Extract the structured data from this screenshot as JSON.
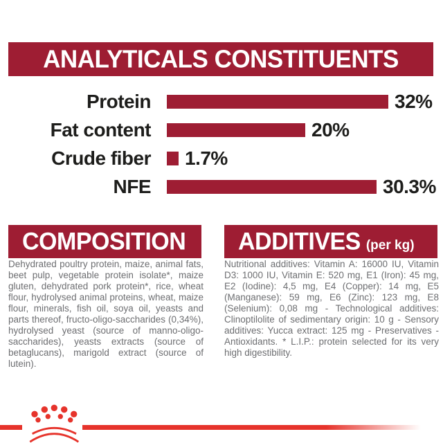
{
  "colors": {
    "burgundy": "#9e1d33",
    "bright_red": "#e6332b",
    "text_grey": "#6d6e71",
    "label_black": "#1d1d1b",
    "banner_text": "#ffffff"
  },
  "header": {
    "title": "ANALYTICALS CONSTITUENTS"
  },
  "chart_data": {
    "type": "bar",
    "orientation": "horizontal",
    "title": "ANALYTICALS CONSTITUENTS",
    "categories": [
      "Protein",
      "Fat content",
      "Crude fiber",
      "NFE"
    ],
    "values": [
      32,
      20,
      1.7,
      30.3
    ],
    "value_labels": [
      "32%",
      "20%",
      "1.7%",
      "30.3%"
    ],
    "unit": "%",
    "xlim": [
      0,
      32
    ],
    "bar_color": "#9e1d33",
    "grid": false,
    "legend": false
  },
  "composition": {
    "title": "COMPOSITION",
    "body": "Dehydrated poultry protein, maize, animal fats, beet pulp, vegetable protein isolate*, maize gluten, dehydrated pork protein*, rice, wheat flour, hydrolysed animal proteins, wheat, maize flour, minerals, fish oil, soya oil, yeasts and parts thereof, fructo-oligo-saccharides (0,34%), hydrolysed yeast (source of manno-oligo-saccharides), yeasts extracts (source of betaglucans), marigold extract (source of lutein)."
  },
  "additives": {
    "title": "ADDITIVES",
    "title_suffix": "(per kg)",
    "body": "Nutritional additives: Vitamin A: 16000 IU, Vitamin D3: 1000 IU, Vitamin E: 520 mg, E1 (Iron): 45 mg, E2 (Iodine): 4,5 mg, E4 (Copper): 14 mg, E5 (Manganese): 59 mg, E6 (Zinc): 123 mg, E8 (Selenium): 0,08 mg - Technological additives: Clinoptilolite of sedimentary origin: 10 g - Sensory additives: Yucca extract: 125 mg - Preservatives - Antioxidants. * L.I.P.: protein selected for its very high digestibility."
  },
  "footer": {
    "brand": "Royal Canin crown emblem"
  }
}
